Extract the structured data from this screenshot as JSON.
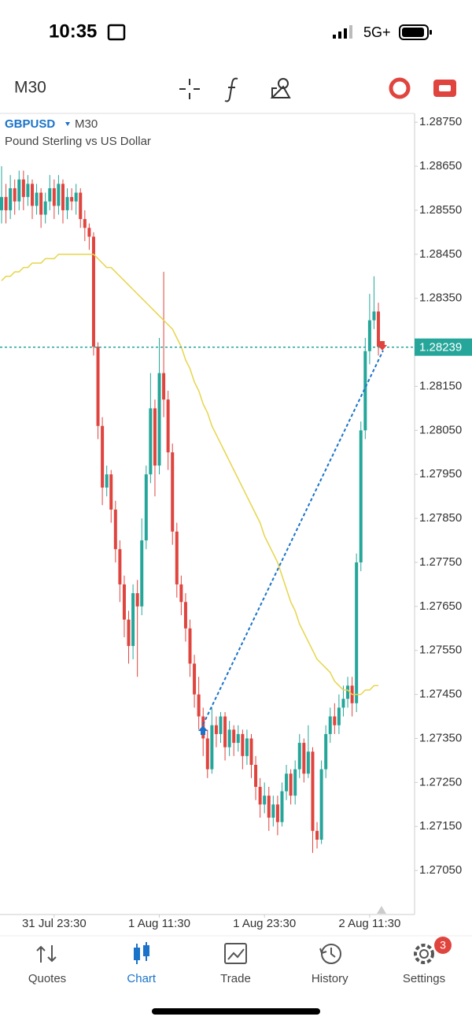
{
  "status_bar": {
    "time": "10:35",
    "network": "5G+"
  },
  "toolbar": {
    "timeframe": "M30"
  },
  "chart_data": {
    "type": "candlestick",
    "symbol": "GBPUSD",
    "timeframe": "M30",
    "subtitle": "Pound Sterling vs US Dollar",
    "categories": [
      null,
      null,
      null,
      null,
      null,
      null,
      null,
      null,
      null,
      null,
      null,
      null,
      "31 Jul 23:30",
      null,
      null,
      null,
      null,
      null,
      null,
      null,
      null,
      null,
      null,
      null,
      null,
      null,
      null,
      null,
      null,
      null,
      null,
      null,
      null,
      null,
      null,
      null,
      "1 Aug 11:30",
      null,
      null,
      null,
      null,
      null,
      null,
      null,
      null,
      null,
      null,
      null,
      null,
      null,
      null,
      null,
      null,
      null,
      null,
      null,
      null,
      null,
      null,
      null,
      "1 Aug 23:30",
      null,
      null,
      null,
      null,
      null,
      null,
      null,
      null,
      null,
      null,
      null,
      null,
      null,
      null,
      null,
      null,
      null,
      null,
      null,
      null,
      null,
      null,
      null,
      "2 Aug 11:30",
      null,
      null
    ],
    "open": [
      1.2855,
      1.2858,
      1.2855,
      1.286,
      1.2857,
      1.2862,
      1.2858,
      1.2861,
      1.2856,
      1.2859,
      1.2854,
      1.2857,
      1.286,
      1.2856,
      1.2861,
      1.2855,
      1.2858,
      1.2857,
      1.2859,
      1.2853,
      1.2851,
      1.2849,
      1.2824,
      1.2806,
      1.2792,
      1.2795,
      1.2787,
      1.2778,
      1.277,
      1.2762,
      1.2756,
      1.2768,
      1.2765,
      1.278,
      1.2795,
      1.281,
      1.2797,
      1.2818,
      1.2812,
      1.28,
      1.2782,
      1.277,
      1.2766,
      1.276,
      1.2752,
      1.2745,
      1.274,
      1.2735,
      1.2728,
      1.2738,
      1.2736,
      1.274,
      1.2733,
      1.2737,
      1.2734,
      1.2736,
      1.2731,
      1.2735,
      1.2729,
      1.2724,
      1.272,
      1.2722,
      1.2717,
      1.272,
      1.2716,
      1.2723,
      1.2727,
      1.2722,
      1.2728,
      1.2734,
      1.2727,
      1.2732,
      1.2714,
      1.2712,
      1.2728,
      1.2736,
      1.274,
      1.2738,
      1.2742,
      1.2744,
      1.2747,
      1.2743,
      1.2775,
      1.2805,
      1.2823,
      1.283,
      1.2832
    ],
    "high": [
      1.2865,
      1.2861,
      1.2863,
      1.2862,
      1.2864,
      1.2864,
      1.2863,
      1.2862,
      1.2861,
      1.286,
      1.2859,
      1.2863,
      1.2862,
      1.2863,
      1.2862,
      1.286,
      1.286,
      1.2861,
      1.286,
      1.2855,
      1.2852,
      1.285,
      1.2825,
      1.2808,
      1.2797,
      1.2796,
      1.2789,
      1.278,
      1.2772,
      1.2764,
      1.277,
      1.2771,
      1.2785,
      1.2797,
      1.2818,
      1.2812,
      1.2826,
      1.2841,
      1.2814,
      1.2802,
      1.2784,
      1.2772,
      1.2768,
      1.2762,
      1.2754,
      1.2749,
      1.2742,
      1.2737,
      1.2742,
      1.274,
      1.2741,
      1.2741,
      1.2739,
      1.2738,
      1.2738,
      1.2737,
      1.2737,
      1.2736,
      1.2731,
      1.2726,
      1.2725,
      1.2724,
      1.2722,
      1.2722,
      1.2725,
      1.2729,
      1.2728,
      1.273,
      1.2736,
      1.2735,
      1.2738,
      1.2733,
      1.2716,
      1.273,
      1.2738,
      1.2742,
      1.2743,
      1.2745,
      1.2747,
      1.2749,
      1.2749,
      1.2777,
      1.2807,
      1.2826,
      1.2836,
      1.284,
      1.2834
    ],
    "low": [
      1.2852,
      1.2852,
      1.2853,
      1.2854,
      1.2855,
      1.2855,
      1.2856,
      1.2853,
      1.2854,
      1.2851,
      1.2852,
      1.2855,
      1.2853,
      1.2854,
      1.2852,
      1.2853,
      1.2855,
      1.2854,
      1.2851,
      1.2848,
      1.2846,
      1.2822,
      1.2803,
      1.2788,
      1.279,
      1.2784,
      1.2775,
      1.2766,
      1.2758,
      1.2752,
      1.2753,
      1.2749,
      1.2763,
      1.2778,
      1.2793,
      1.279,
      1.2795,
      1.2808,
      1.2796,
      1.2779,
      1.2767,
      1.2763,
      1.2757,
      1.2749,
      1.2742,
      1.2737,
      1.2731,
      1.2726,
      1.2727,
      1.2733,
      1.2734,
      1.273,
      1.2731,
      1.2731,
      1.2732,
      1.2728,
      1.2729,
      1.2726,
      1.2721,
      1.2717,
      1.2718,
      1.2714,
      1.2715,
      1.2713,
      1.2715,
      1.2721,
      1.272,
      1.272,
      1.2726,
      1.2725,
      1.2726,
      1.2709,
      1.271,
      1.2711,
      1.2726,
      1.2734,
      1.2736,
      1.2736,
      1.274,
      1.2742,
      1.274,
      1.2741,
      1.2773,
      1.2803,
      1.282,
      1.2828,
      1.2822
    ],
    "close": [
      1.2858,
      1.2855,
      1.286,
      1.2857,
      1.2862,
      1.2858,
      1.2861,
      1.2856,
      1.2859,
      1.2854,
      1.2857,
      1.286,
      1.2856,
      1.2861,
      1.2855,
      1.2858,
      1.2857,
      1.2859,
      1.2853,
      1.2851,
      1.2849,
      1.2824,
      1.2806,
      1.2792,
      1.2795,
      1.2787,
      1.2778,
      1.277,
      1.2762,
      1.2756,
      1.2768,
      1.2765,
      1.278,
      1.2795,
      1.281,
      1.2797,
      1.2818,
      1.2812,
      1.28,
      1.2782,
      1.277,
      1.2766,
      1.276,
      1.2752,
      1.2745,
      1.274,
      1.2735,
      1.2728,
      1.2738,
      1.2736,
      1.274,
      1.2733,
      1.2737,
      1.2734,
      1.2736,
      1.2731,
      1.2735,
      1.2729,
      1.2724,
      1.272,
      1.2722,
      1.2717,
      1.272,
      1.2716,
      1.2723,
      1.2727,
      1.2722,
      1.2728,
      1.2734,
      1.2727,
      1.2732,
      1.2714,
      1.2712,
      1.2728,
      1.2736,
      1.274,
      1.2738,
      1.2742,
      1.2744,
      1.2747,
      1.2743,
      1.2775,
      1.2805,
      1.2823,
      1.283,
      1.2832,
      1.2824
    ],
    "up_color": "#26a69a",
    "down_color": "#e0443e",
    "moving_average": {
      "color": "#e6d54a",
      "values": [
        1.2839,
        1.284,
        1.284,
        1.2841,
        1.2841,
        1.2842,
        1.2842,
        1.2843,
        1.2843,
        1.2843,
        1.2844,
        1.2844,
        1.2844,
        1.2845,
        1.2845,
        1.2845,
        1.2845,
        1.2845,
        1.2845,
        1.2845,
        1.2845,
        1.2845,
        1.2844,
        1.2843,
        1.2842,
        1.2842,
        1.2841,
        1.284,
        1.2839,
        1.2838,
        1.2837,
        1.2836,
        1.2835,
        1.2834,
        1.2833,
        1.2832,
        1.2831,
        1.283,
        1.2829,
        1.2828,
        1.2826,
        1.2824,
        1.2821,
        1.2819,
        1.2816,
        1.2814,
        1.2811,
        1.2809,
        1.2806,
        1.2804,
        1.2802,
        1.28,
        1.2798,
        1.2796,
        1.2794,
        1.2792,
        1.279,
        1.2788,
        1.2786,
        1.2784,
        1.2781,
        1.2779,
        1.2777,
        1.2775,
        1.2772,
        1.2769,
        1.2766,
        1.2764,
        1.2761,
        1.2759,
        1.2757,
        1.2755,
        1.2753,
        1.2752,
        1.2751,
        1.275,
        1.2748,
        1.2747,
        1.2746,
        1.2746,
        1.2745,
        1.2745,
        1.2745,
        1.2746,
        1.2746,
        1.2747,
        1.2747
      ]
    },
    "current_price": 1.28239,
    "current_price_color": "#26a69a",
    "ylim": [
      1.2695,
      1.2877
    ],
    "yticks": [
      {
        "value": 1.2875,
        "label": "1.28750"
      },
      {
        "value": 1.2865,
        "label": "1.28650"
      },
      {
        "value": 1.2855,
        "label": "1.28550"
      },
      {
        "value": 1.2845,
        "label": "1.28450"
      },
      {
        "value": 1.2835,
        "label": "1.28350"
      },
      {
        "value": 1.2815,
        "label": "1.28150"
      },
      {
        "value": 1.2805,
        "label": "1.28050"
      },
      {
        "value": 1.2795,
        "label": "1.27950"
      },
      {
        "value": 1.2785,
        "label": "1.27850"
      },
      {
        "value": 1.2775,
        "label": "1.27750"
      },
      {
        "value": 1.2765,
        "label": "1.27650"
      },
      {
        "value": 1.2755,
        "label": "1.27550"
      },
      {
        "value": 1.2745,
        "label": "1.27450"
      },
      {
        "value": 1.2735,
        "label": "1.27350"
      },
      {
        "value": 1.2725,
        "label": "1.27250"
      },
      {
        "value": 1.2715,
        "label": "1.27150"
      },
      {
        "value": 1.2705,
        "label": "1.27050"
      }
    ]
  },
  "nav": {
    "items": [
      {
        "label": "Quotes",
        "active": false
      },
      {
        "label": "Chart",
        "active": true
      },
      {
        "label": "Trade",
        "active": false
      },
      {
        "label": "History",
        "active": false
      },
      {
        "label": "Settings",
        "active": false
      }
    ],
    "settings_badge": 3
  }
}
